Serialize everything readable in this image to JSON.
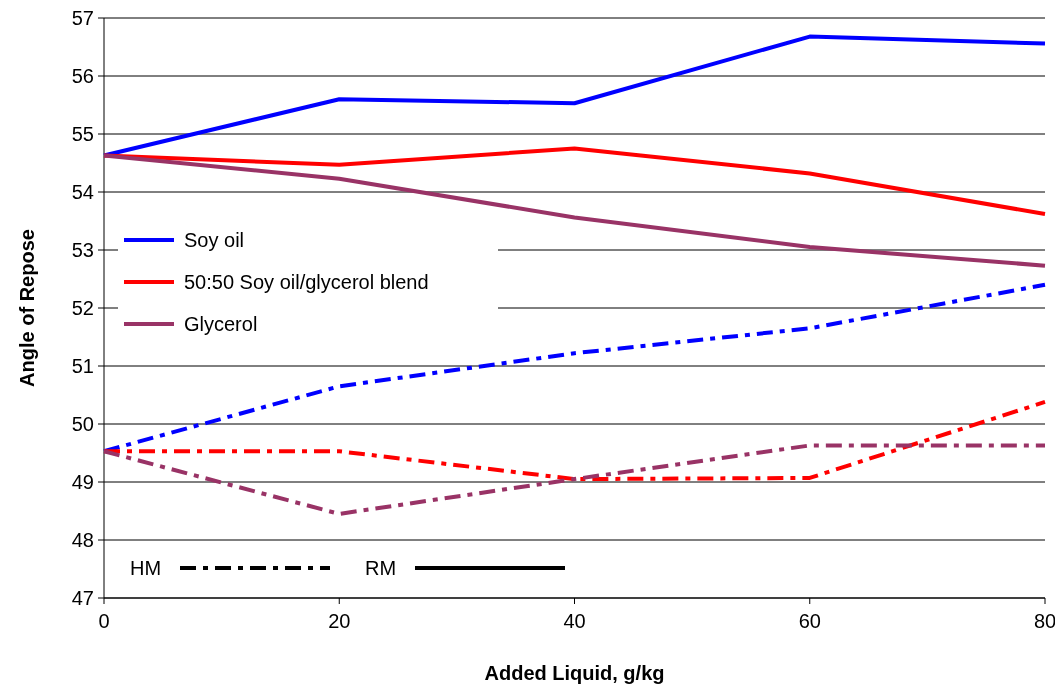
{
  "chart_data": {
    "type": "line",
    "xlabel": "Added Liquid, g/kg",
    "ylabel": "Angle of Repose",
    "x": [
      0,
      20,
      40,
      60,
      80
    ],
    "xlim": [
      0,
      80
    ],
    "xticks": [
      0,
      20,
      40,
      60,
      80
    ],
    "ylim": [
      47,
      57
    ],
    "yticks": [
      47,
      48,
      49,
      50,
      51,
      52,
      53,
      54,
      55,
      56,
      57
    ],
    "grid": "y",
    "legend": "left",
    "marker": "none",
    "series": [
      {
        "name": "Soy oil",
        "color": "#0000ff",
        "line_style": "solid",
        "values": [
          54.63,
          55.6,
          55.53,
          56.68,
          56.56
        ]
      },
      {
        "name": "50:50 Soy oil/glycerol blend",
        "color": "#ff0000",
        "line_style": "solid",
        "values": [
          54.63,
          54.47,
          54.75,
          54.32,
          53.62
        ]
      },
      {
        "name": "Glycerol",
        "color": "#993366",
        "line_style": "solid",
        "values": [
          54.63,
          54.23,
          53.56,
          53.05,
          52.73
        ]
      },
      {
        "color": "#0000ff",
        "line_style": "dashed",
        "values": [
          49.53,
          50.65,
          51.22,
          51.65,
          52.4
        ]
      },
      {
        "color": "#ff0000",
        "line_style": "dashed",
        "values": [
          49.53,
          49.53,
          49.05,
          49.07,
          50.38
        ]
      },
      {
        "color": "#993366",
        "line_style": "dashed",
        "values": [
          49.53,
          48.45,
          49.05,
          49.63,
          49.63
        ]
      }
    ],
    "annotations": [
      "HM",
      "RM"
    ]
  }
}
